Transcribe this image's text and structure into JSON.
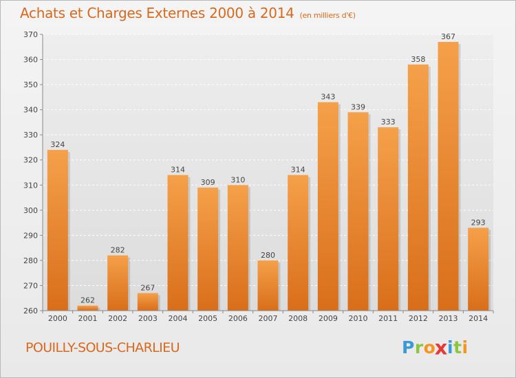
{
  "chart_data": {
    "type": "bar",
    "title": "Achats et Charges Externes 2000 à 2014",
    "unit_label": "(en milliers d'€)",
    "categories": [
      "2000",
      "2001",
      "2002",
      "2003",
      "2004",
      "2005",
      "2006",
      "2007",
      "2008",
      "2009",
      "2010",
      "2011",
      "2012",
      "2013",
      "2014"
    ],
    "values": [
      324,
      262,
      282,
      267,
      314,
      309,
      310,
      280,
      314,
      343,
      339,
      333,
      358,
      367,
      293
    ],
    "ylim": [
      260,
      370
    ],
    "yticks": [
      260,
      270,
      280,
      290,
      300,
      310,
      320,
      330,
      340,
      350,
      360,
      370
    ],
    "grid": true,
    "bar_color": "#f08c30"
  },
  "footer": {
    "commune": "POUILLY-SOUS-CHARLIEU",
    "logo_letters": [
      {
        "ch": "P",
        "color": "#3a9ad9"
      },
      {
        "ch": "r",
        "color": "#8cc63f"
      },
      {
        "ch": "o",
        "color": "#f7941d"
      },
      {
        "ch": "x",
        "color": "#e53935"
      },
      {
        "ch": "i",
        "color": "#3a9ad9"
      },
      {
        "ch": "t",
        "color": "#8cc63f"
      },
      {
        "ch": "i",
        "color": "#f7941d"
      }
    ]
  }
}
